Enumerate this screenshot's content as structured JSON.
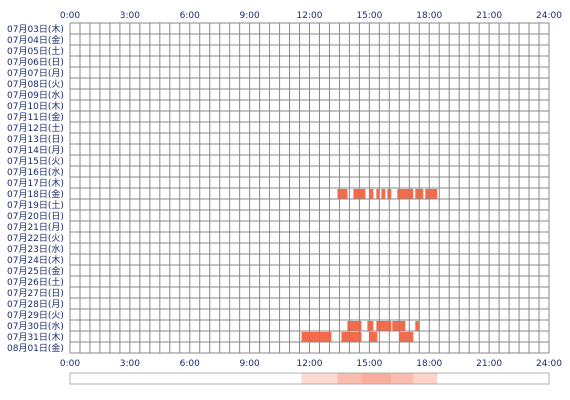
{
  "colors": {
    "grid": "#8a8a8a",
    "background": "#ffffff",
    "label": "#1a2a6c",
    "activity": "#f46b4c",
    "summary_bar_border": "#b0b0b0"
  },
  "hour_labels": [
    "0:00",
    "3:00",
    "6:00",
    "9:00",
    "12:00",
    "15:00",
    "18:00",
    "21:00",
    "24:00"
  ],
  "rows": [
    {
      "label": "07月03日(木)",
      "activity": []
    },
    {
      "label": "07月04日(金)",
      "activity": []
    },
    {
      "label": "07月05日(土)",
      "activity": []
    },
    {
      "label": "07月06日(日)",
      "activity": []
    },
    {
      "label": "07月07日(月)",
      "activity": []
    },
    {
      "label": "07月08日(火)",
      "activity": []
    },
    {
      "label": "07月09日(水)",
      "activity": []
    },
    {
      "label": "07月10日(木)",
      "activity": []
    },
    {
      "label": "07月11日(金)",
      "activity": []
    },
    {
      "label": "07月12日(土)",
      "activity": []
    },
    {
      "label": "07月13日(日)",
      "activity": []
    },
    {
      "label": "07月14日(月)",
      "activity": []
    },
    {
      "label": "07月15日(火)",
      "activity": []
    },
    {
      "label": "07月16日(水)",
      "activity": []
    },
    {
      "label": "07月17日(木)",
      "activity": []
    },
    {
      "label": "07月18日(金)",
      "activity": [
        [
          13.4,
          13.9
        ],
        [
          14.2,
          14.8
        ],
        [
          15.0,
          15.2
        ],
        [
          15.35,
          15.5
        ],
        [
          15.6,
          15.8
        ],
        [
          15.9,
          16.1
        ],
        [
          16.4,
          17.2
        ],
        [
          17.3,
          17.7
        ],
        [
          17.8,
          18.4
        ]
      ]
    },
    {
      "label": "07月19日(土)",
      "activity": []
    },
    {
      "label": "07月20日(日)",
      "activity": []
    },
    {
      "label": "07月21日(月)",
      "activity": []
    },
    {
      "label": "07月22日(火)",
      "activity": []
    },
    {
      "label": "07月23日(水)",
      "activity": []
    },
    {
      "label": "07月24日(木)",
      "activity": []
    },
    {
      "label": "07月25日(金)",
      "activity": []
    },
    {
      "label": "07月26日(土)",
      "activity": []
    },
    {
      "label": "07月27日(日)",
      "activity": []
    },
    {
      "label": "07月28日(月)",
      "activity": []
    },
    {
      "label": "07月29日(火)",
      "activity": []
    },
    {
      "label": "07月30日(水)",
      "activity": [
        [
          13.9,
          14.6
        ],
        [
          14.9,
          15.2
        ],
        [
          15.35,
          16.1
        ],
        [
          16.15,
          16.8
        ],
        [
          17.3,
          17.5
        ]
      ]
    },
    {
      "label": "07月31日(木)",
      "activity": [
        [
          11.6,
          13.1
        ],
        [
          13.6,
          14.6
        ],
        [
          15.0,
          15.4
        ],
        [
          16.5,
          17.2
        ]
      ]
    },
    {
      "label": "08月01日(金)",
      "activity": []
    }
  ],
  "summary_bar": {
    "segments": [
      {
        "range": [
          11.6,
          13.4
        ],
        "intensity": 0.25
      },
      {
        "range": [
          13.4,
          14.6
        ],
        "intensity": 0.45
      },
      {
        "range": [
          14.6,
          16.1
        ],
        "intensity": 0.55
      },
      {
        "range": [
          16.1,
          17.2
        ],
        "intensity": 0.45
      },
      {
        "range": [
          17.2,
          18.4
        ],
        "intensity": 0.3
      }
    ]
  }
}
